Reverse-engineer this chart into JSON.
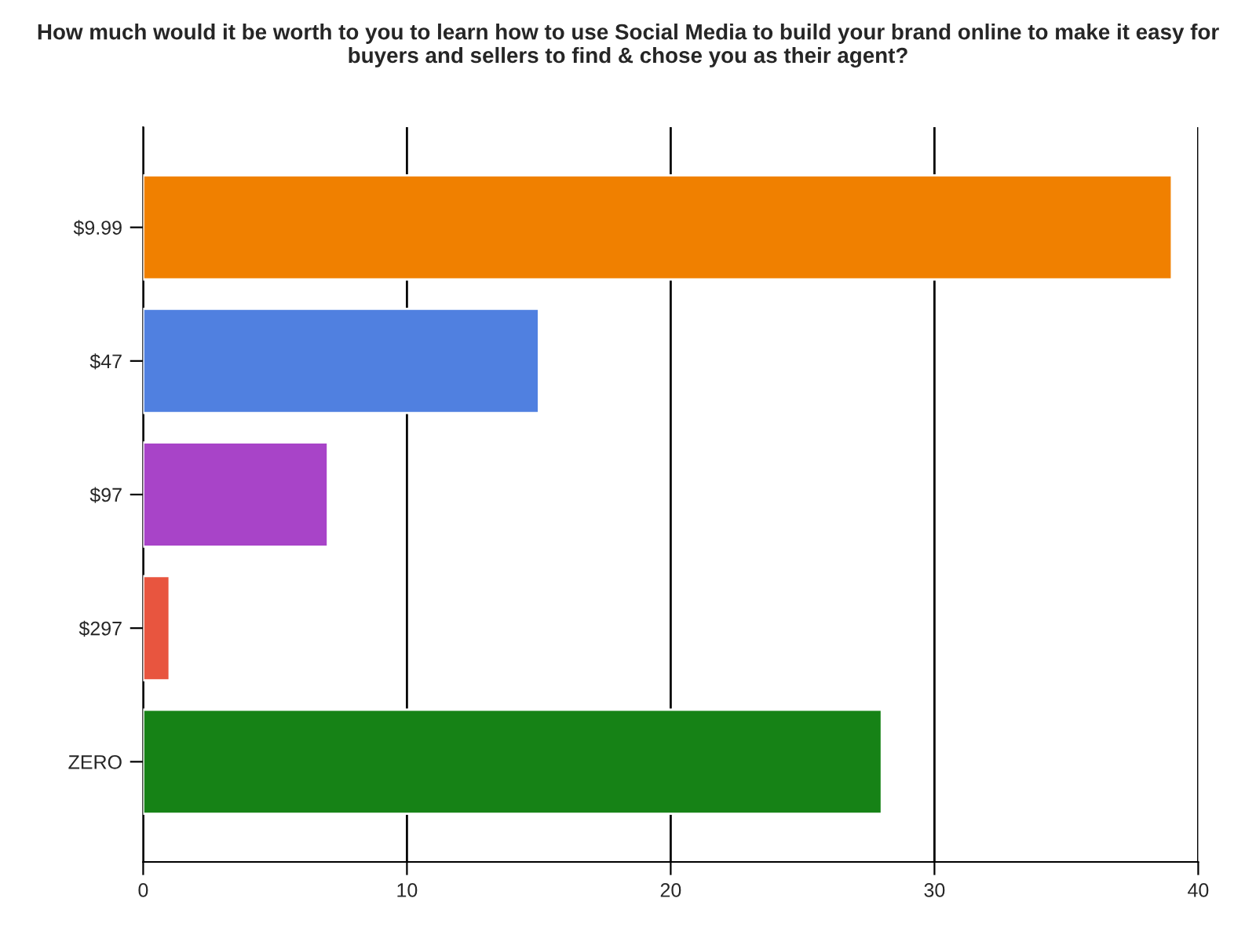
{
  "chart_data": {
    "type": "bar",
    "orientation": "horizontal",
    "title": "How much would it be worth to you to learn how to use Social Media to build your brand online to make it easy for buyers and sellers to find & chose you as their agent?",
    "categories": [
      "$9.99",
      "$47",
      "$97",
      "$297",
      "ZERO"
    ],
    "values": [
      39,
      15,
      7,
      1,
      28
    ],
    "colors": [
      "#f08000",
      "#5080e0",
      "#a844c8",
      "#e8553f",
      "#168216"
    ],
    "xlim": [
      0,
      40
    ],
    "xticks": [
      0,
      10,
      20,
      30,
      40
    ],
    "grid": "x",
    "legend": false
  }
}
